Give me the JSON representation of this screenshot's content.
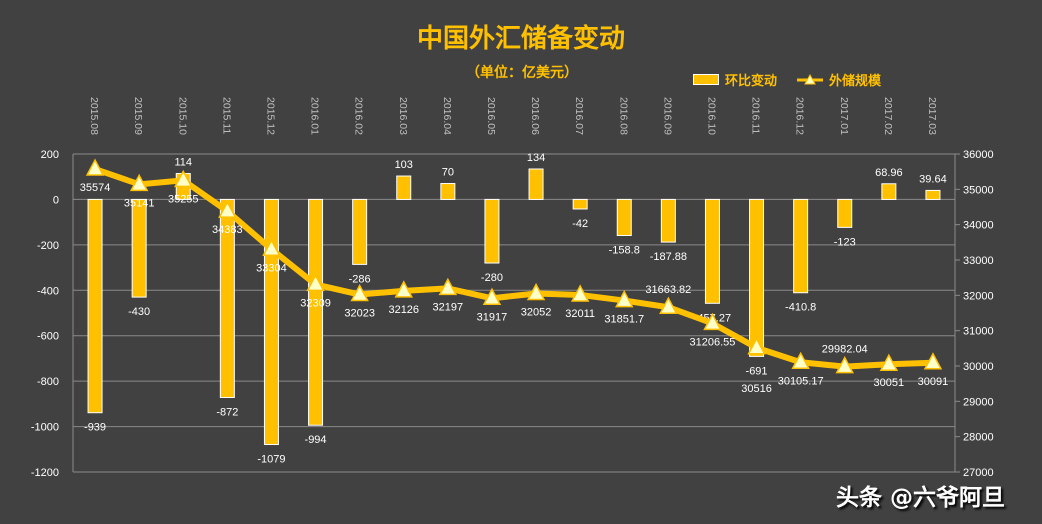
{
  "chart_data": {
    "type": "bar+line",
    "title": "中国外汇储备变动",
    "subtitle": "（单位：亿美元）",
    "categories": [
      "2015.08",
      "2015.09",
      "2015.10",
      "2015.11",
      "2015.12",
      "2016.01",
      "2016.02",
      "2016.03",
      "2016.04",
      "2016.05",
      "2016.06",
      "2016.07",
      "2016.08",
      "2016.09",
      "2016.10",
      "2016.11",
      "2016.12",
      "2017.01",
      "2017.02",
      "2017.03"
    ],
    "series": [
      {
        "name": "环比变动",
        "type": "bar",
        "axis": "left",
        "color": "#FFC000",
        "values": [
          -939,
          -430,
          114,
          -872,
          -1079,
          -994,
          -286,
          103,
          70,
          -280,
          134,
          -42,
          -158.8,
          -187.88,
          -457.27,
          -691,
          -410.8,
          -123,
          68.96,
          39.64
        ],
        "labels": [
          "-939",
          "-430",
          "114",
          "-872",
          "-1079",
          "-994",
          "-286",
          "103",
          "70",
          "-280",
          "134",
          "-42",
          "-158.8",
          "-187.88",
          "-457.27",
          "-691",
          "-410.8",
          "-123",
          "68.96",
          "39.64"
        ]
      },
      {
        "name": "外储规模",
        "type": "line",
        "axis": "right",
        "color": "#FFC000",
        "values": [
          35574,
          35141,
          35255,
          34383,
          33304,
          32309,
          32023,
          32126,
          32197,
          31917,
          32052,
          32011,
          31851.7,
          31663.82,
          31206.55,
          30516,
          30105.17,
          29982.04,
          30051,
          30091
        ],
        "labels": [
          "35574",
          "35141",
          "35255",
          "34383",
          "33304",
          "32309",
          "32023",
          "32126",
          "32197",
          "31917",
          "32052",
          "32011",
          "31851.7",
          "31663.82",
          "31206.55",
          "30516",
          "30105.17",
          "29982.04",
          "30051",
          "30091"
        ]
      }
    ],
    "left_axis": {
      "ylim": [
        -1200,
        200
      ],
      "ticks": [
        "200",
        "0",
        "-200",
        "-400",
        "-600",
        "-800",
        "-1000",
        "-1200"
      ],
      "tick_values": [
        200,
        0,
        -200,
        -400,
        -600,
        -800,
        -1000,
        -1200
      ]
    },
    "right_axis": {
      "ylim": [
        27000,
        36000
      ],
      "ticks": [
        "36000",
        "35000",
        "34000",
        "33000",
        "32000",
        "31000",
        "30000",
        "29000",
        "28000",
        "27000"
      ],
      "tick_values": [
        36000,
        35000,
        34000,
        33000,
        32000,
        31000,
        30000,
        29000,
        28000,
        27000
      ]
    },
    "grid": true,
    "legend_position": "top-right"
  },
  "watermark": "头条 @六爷阿旦"
}
